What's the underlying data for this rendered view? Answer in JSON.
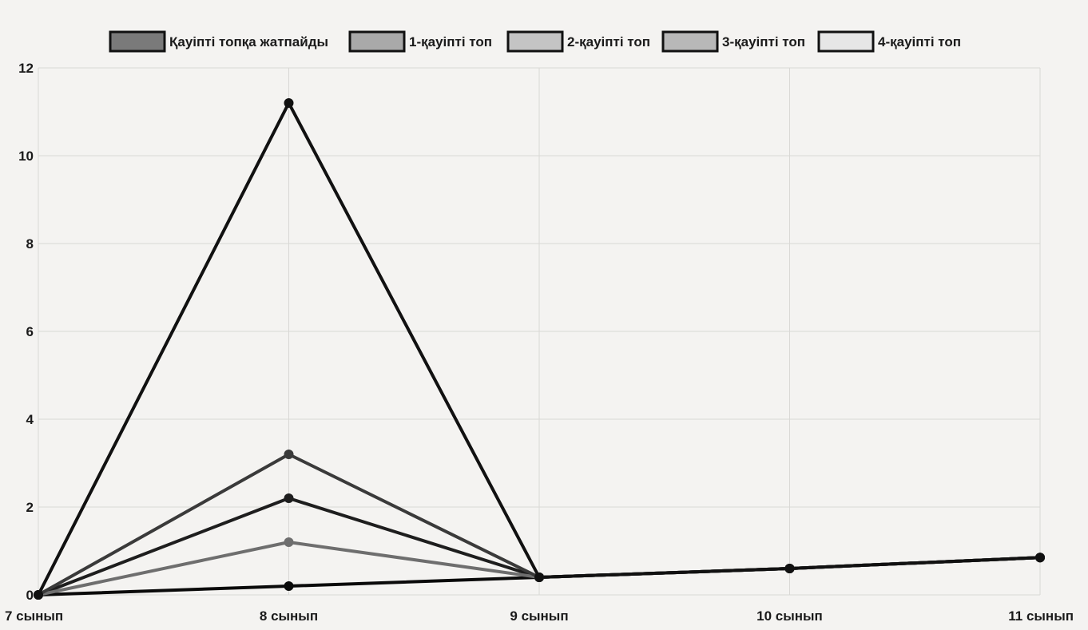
{
  "chart_data": {
    "type": "line",
    "categories": [
      "7 сынып",
      "8 сынып",
      "9 сынып",
      "10 сынып",
      "11 сынып"
    ],
    "ylim": [
      0,
      12
    ],
    "yticks": [
      0,
      2,
      4,
      6,
      8,
      10,
      12
    ],
    "grid": true,
    "legend_position": "top",
    "series": [
      {
        "name": "Қауіпті топқа жатпайды",
        "values": [
          0,
          11.2,
          0.4,
          0.6,
          0.85
        ],
        "color": "#111111",
        "fill": "#7a7a7a"
      },
      {
        "name": "1-қауіпті топ",
        "values": [
          0,
          3.2,
          0.4,
          0.6,
          0.85
        ],
        "color": "#3a3a3a",
        "fill": "#a9a9a9"
      },
      {
        "name": "2-қауіпті топ",
        "values": [
          0,
          1.2,
          0.4,
          0.6,
          0.85
        ],
        "color": "#6e6e6e",
        "fill": "#c4c4c4"
      },
      {
        "name": "3-қауіпті топ",
        "values": [
          0,
          2.2,
          0.4,
          0.6,
          0.85
        ],
        "color": "#1e1e1e",
        "fill": "#b8b8b8"
      },
      {
        "name": "4-қауіпті топ",
        "values": [
          0,
          0.2,
          0.4,
          0.6,
          0.85
        ],
        "color": "#0a0a0a",
        "fill": "#e6e6e6"
      }
    ]
  }
}
